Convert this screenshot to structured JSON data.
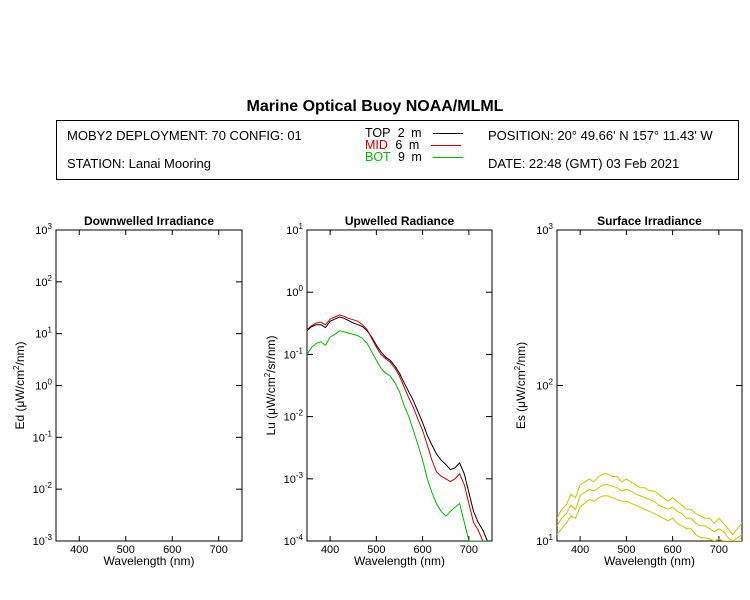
{
  "header": {
    "title": "Marine Optical Buoy NOAA/MLML",
    "deployment": "MOBY2 DEPLOYMENT: 70 CONFIG: 01",
    "station": "STATION: Lanai Mooring",
    "position": "POSITION: 20° 49.66' N   157° 11.43' W",
    "date": "DATE: 22:48 (GMT) 03 Feb 2021",
    "depths": [
      {
        "label": "TOP",
        "depth": "2",
        "unit": "m",
        "color": "#000000"
      },
      {
        "label": "MID",
        "depth": "6",
        "unit": "m",
        "color": "#cc0000"
      },
      {
        "label": "BOT",
        "depth": "9",
        "unit": "m",
        "color": "#00bb00"
      }
    ]
  },
  "chart_data": [
    {
      "type": "line",
      "title": "Downwelled Irradiance",
      "xlabel": "Wavelength (nm)",
      "ylabel": "Ed  (μW/cm²/nm)",
      "xlim": [
        350,
        750
      ],
      "ylim": [
        0.001,
        1000
      ],
      "yscale": "log",
      "xticks": [
        "400",
        "500",
        "600",
        "700"
      ],
      "ytick_exponents": [
        "-3",
        "-2",
        "-1",
        "0",
        "1",
        "2",
        "3"
      ],
      "series": []
    },
    {
      "type": "line",
      "title": "Upwelled Radiance",
      "xlabel": "Wavelength (nm)",
      "ylabel": "Lu  (μW/cm²/sr/nm)",
      "xlim": [
        350,
        750
      ],
      "ylim": [
        0.0001,
        10
      ],
      "yscale": "log",
      "xticks": [
        "400",
        "500",
        "600",
        "700"
      ],
      "ytick_exponents": [
        "-4",
        "-3",
        "-2",
        "-1",
        "0",
        "1"
      ],
      "series": [
        {
          "color": "#000000",
          "x": [
            350,
            360,
            370,
            380,
            390,
            400,
            410,
            420,
            430,
            440,
            450,
            460,
            470,
            480,
            490,
            500,
            510,
            520,
            530,
            540,
            550,
            560,
            570,
            580,
            590,
            600,
            610,
            620,
            630,
            640,
            650,
            660,
            670,
            680,
            690,
            700,
            710,
            720,
            730,
            740
          ],
          "y": [
            0.24,
            0.28,
            0.3,
            0.3,
            0.27,
            0.34,
            0.37,
            0.4,
            0.38,
            0.35,
            0.32,
            0.3,
            0.28,
            0.24,
            0.19,
            0.14,
            0.11,
            0.09,
            0.08,
            0.065,
            0.05,
            0.035,
            0.025,
            0.018,
            0.012,
            0.008,
            0.005,
            0.0035,
            0.0025,
            0.002,
            0.0017,
            0.0014,
            0.0015,
            0.0018,
            0.0012,
            0.0006,
            0.0003,
            0.0002,
            0.00015,
            0.0001
          ]
        },
        {
          "color": "#cc0000",
          "x": [
            350,
            360,
            370,
            380,
            390,
            400,
            410,
            420,
            430,
            440,
            450,
            460,
            470,
            480,
            490,
            500,
            510,
            520,
            530,
            540,
            550,
            560,
            570,
            580,
            590,
            600,
            610,
            620,
            630,
            640,
            650,
            660,
            670,
            680,
            690,
            700,
            710,
            720,
            730,
            740
          ],
          "y": [
            0.25,
            0.29,
            0.32,
            0.33,
            0.3,
            0.37,
            0.4,
            0.43,
            0.41,
            0.38,
            0.36,
            0.34,
            0.3,
            0.25,
            0.18,
            0.13,
            0.1,
            0.085,
            0.075,
            0.06,
            0.045,
            0.03,
            0.02,
            0.014,
            0.009,
            0.006,
            0.0035,
            0.002,
            0.0013,
            0.0011,
            0.001,
            0.0009,
            0.001,
            0.0012,
            0.0008,
            0.0004,
            0.0002,
            0.00015,
            0.0001,
            0.0001
          ]
        },
        {
          "color": "#00bb00",
          "x": [
            350,
            360,
            370,
            380,
            390,
            400,
            410,
            420,
            430,
            440,
            450,
            460,
            470,
            480,
            490,
            500,
            510,
            520,
            530,
            540,
            550,
            560,
            570,
            580,
            590,
            600,
            610,
            620,
            630,
            640,
            650,
            660,
            670,
            680,
            690,
            700,
            710,
            720,
            730,
            740
          ],
          "y": [
            0.1,
            0.13,
            0.15,
            0.16,
            0.14,
            0.19,
            0.21,
            0.24,
            0.23,
            0.22,
            0.21,
            0.2,
            0.18,
            0.15,
            0.11,
            0.08,
            0.06,
            0.05,
            0.045,
            0.035,
            0.025,
            0.015,
            0.01,
            0.006,
            0.0035,
            0.002,
            0.001,
            0.0006,
            0.0004,
            0.0003,
            0.00025,
            0.0003,
            0.00035,
            0.0004,
            0.0002,
            0.0001,
            0.0001,
            0.0001,
            0.0001,
            0.0001
          ]
        }
      ]
    },
    {
      "type": "line",
      "title": "Surface Irradiance",
      "xlabel": "Wavelength (nm)",
      "ylabel": "Es  (μW/cm²/nm)",
      "xlim": [
        350,
        750
      ],
      "ylim": [
        10,
        1000
      ],
      "yscale": "log",
      "xticks": [
        "400",
        "500",
        "600",
        "700"
      ],
      "ytick_exponents": [
        "1",
        "2",
        "3"
      ],
      "series": [
        {
          "color": "#c8c800",
          "x": [
            350,
            360,
            370,
            380,
            390,
            400,
            410,
            420,
            430,
            440,
            450,
            460,
            470,
            480,
            490,
            500,
            510,
            520,
            530,
            540,
            550,
            560,
            570,
            580,
            590,
            600,
            610,
            620,
            630,
            640,
            650,
            660,
            670,
            680,
            690,
            700,
            710,
            720,
            730,
            740,
            750
          ],
          "y": [
            14,
            16,
            17,
            20,
            19,
            23,
            24,
            25,
            24,
            26,
            27,
            27,
            26,
            26,
            24,
            25,
            24,
            23,
            22,
            22,
            21,
            21,
            20,
            19,
            18,
            19,
            18,
            17,
            16,
            16,
            15,
            14.5,
            14,
            14,
            13,
            14,
            13,
            12,
            11,
            12,
            13
          ]
        },
        {
          "color": "#c8c800",
          "x": [
            350,
            360,
            370,
            380,
            390,
            400,
            410,
            420,
            430,
            440,
            450,
            460,
            470,
            480,
            490,
            500,
            510,
            520,
            530,
            540,
            550,
            560,
            570,
            580,
            590,
            600,
            610,
            620,
            630,
            640,
            650,
            660,
            670,
            680,
            690,
            700,
            710,
            720,
            730,
            740,
            750
          ],
          "y": [
            12.5,
            14,
            15,
            17,
            16,
            19.5,
            20.5,
            21.5,
            21,
            22,
            23,
            23,
            22.5,
            22,
            21,
            21.5,
            21,
            20,
            19.5,
            19,
            18.5,
            18,
            17,
            16.5,
            16,
            16.5,
            15.5,
            15,
            14,
            14,
            13,
            12.5,
            12.5,
            12,
            11.5,
            12,
            11.5,
            10.5,
            10,
            10.5,
            11
          ]
        },
        {
          "color": "#c8c800",
          "x": [
            350,
            360,
            370,
            380,
            390,
            400,
            410,
            420,
            430,
            440,
            450,
            460,
            470,
            480,
            490,
            500,
            510,
            520,
            530,
            540,
            550,
            560,
            570,
            580,
            590,
            600,
            610,
            620,
            630,
            640,
            650,
            660,
            670,
            680,
            690,
            700,
            710,
            720,
            730,
            740,
            750
          ],
          "y": [
            11,
            12,
            13,
            14.5,
            14,
            16.5,
            17.5,
            18.5,
            18,
            19,
            19.5,
            19.5,
            19,
            18.5,
            18,
            18,
            17.5,
            17,
            16.5,
            16,
            15.5,
            15,
            14.5,
            14,
            13.5,
            14,
            13,
            12.5,
            12,
            12,
            11,
            10.5,
            10.5,
            10.3,
            10,
            10.3,
            10,
            10,
            10,
            10,
            10
          ]
        }
      ]
    }
  ]
}
